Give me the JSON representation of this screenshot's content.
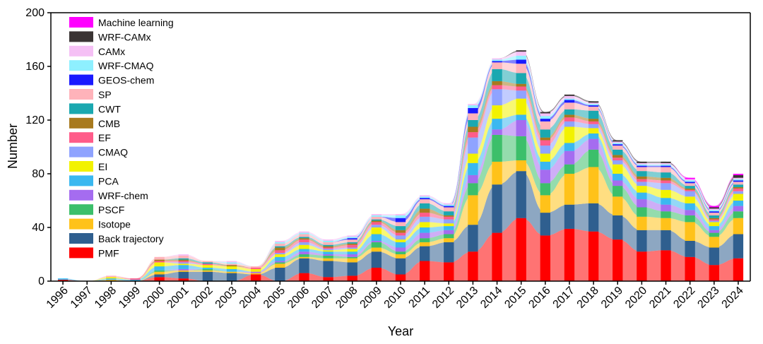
{
  "chart_data": {
    "type": "area",
    "subtype": "stacked-streamgraph-with-bars",
    "title": "",
    "xlabel": "Year",
    "ylabel": "Number",
    "ylim": [
      0,
      200
    ],
    "yticks": [
      "0",
      "40",
      "80",
      "120",
      "160",
      "200"
    ],
    "categories": [
      "1996",
      "1997",
      "1998",
      "1999",
      "2000",
      "2001",
      "2002",
      "2003",
      "2004",
      "2005",
      "2006",
      "2007",
      "2008",
      "2009",
      "2010",
      "2011",
      "2012",
      "2013",
      "2014",
      "2015",
      "2016",
      "2017",
      "2018",
      "2019",
      "2020",
      "2021",
      "2022",
      "2023",
      "2024"
    ],
    "legend_position": "top-left",
    "series": [
      {
        "name": "PMF",
        "color": "#ff0000",
        "values": [
          1,
          0,
          0,
          0,
          3,
          2,
          0,
          0,
          5,
          0,
          6,
          3,
          4,
          10,
          5,
          15,
          14,
          22,
          36,
          47,
          34,
          39,
          37,
          31,
          22,
          23,
          18,
          12,
          17
        ]
      },
      {
        "name": "Back trajectory",
        "color": "#2f5f8f",
        "values": [
          0,
          0,
          0,
          0,
          2,
          5,
          7,
          6,
          0,
          10,
          11,
          12,
          10,
          12,
          12,
          11,
          15,
          20,
          36,
          35,
          17,
          18,
          21,
          18,
          16,
          15,
          12,
          13,
          18
        ]
      },
      {
        "name": "Isotope",
        "color": "#ffc21a",
        "values": [
          0,
          0,
          1,
          0,
          2,
          1,
          1,
          1,
          1,
          3,
          1,
          2,
          3,
          3,
          3,
          3,
          3,
          22,
          17,
          8,
          13,
          23,
          27,
          14,
          10,
          9,
          14,
          8,
          12
        ]
      },
      {
        "name": "PSCF",
        "color": "#3cbf6a",
        "values": [
          0,
          0,
          0,
          0,
          1,
          0,
          1,
          0,
          0,
          1,
          2,
          2,
          1,
          4,
          2,
          3,
          3,
          9,
          20,
          18,
          9,
          7,
          13,
          8,
          7,
          5,
          5,
          3,
          5
        ]
      },
      {
        "name": "WRF-chem",
        "color": "#a56cf0",
        "values": [
          0,
          0,
          0,
          0,
          0,
          1,
          0,
          0,
          1,
          1,
          2,
          1,
          2,
          1,
          3,
          4,
          3,
          6,
          4,
          12,
          10,
          10,
          8,
          4,
          6,
          5,
          4,
          2,
          4
        ]
      },
      {
        "name": "PCA",
        "color": "#3ab8f0",
        "values": [
          1,
          0,
          1,
          1,
          3,
          3,
          1,
          2,
          0,
          3,
          2,
          2,
          2,
          5,
          4,
          4,
          3,
          9,
          8,
          4,
          6,
          6,
          4,
          5,
          5,
          5,
          5,
          3,
          4
        ]
      },
      {
        "name": "EI",
        "color": "#f2f200",
        "values": [
          0,
          0,
          1,
          0,
          3,
          1,
          2,
          2,
          2,
          2,
          3,
          1,
          2,
          5,
          2,
          4,
          2,
          7,
          10,
          12,
          6,
          12,
          4,
          7,
          5,
          6,
          5,
          3,
          5
        ]
      },
      {
        "name": "CMAQ",
        "color": "#8fa3ff",
        "values": [
          0,
          0,
          0,
          0,
          0,
          1,
          0,
          0,
          0,
          1,
          2,
          1,
          1,
          2,
          3,
          4,
          3,
          12,
          12,
          6,
          6,
          4,
          3,
          3,
          3,
          5,
          4,
          1,
          2
        ]
      },
      {
        "name": "EF",
        "color": "#ff5c8a",
        "values": [
          0,
          0,
          0,
          1,
          1,
          1,
          1,
          0,
          1,
          2,
          2,
          1,
          2,
          2,
          2,
          3,
          2,
          4,
          3,
          3,
          4,
          3,
          2,
          2,
          2,
          2,
          1,
          1,
          2
        ]
      },
      {
        "name": "CMB",
        "color": "#a87a1e",
        "values": [
          0,
          0,
          0,
          0,
          1,
          1,
          0,
          1,
          0,
          2,
          1,
          1,
          1,
          1,
          2,
          3,
          1,
          4,
          3,
          2,
          2,
          2,
          2,
          2,
          2,
          2,
          1,
          1,
          1
        ]
      },
      {
        "name": "CWT",
        "color": "#1aa8b0",
        "values": [
          0,
          0,
          0,
          0,
          0,
          1,
          1,
          0,
          0,
          1,
          1,
          1,
          1,
          1,
          3,
          4,
          3,
          5,
          9,
          8,
          6,
          4,
          6,
          4,
          4,
          4,
          2,
          2,
          2
        ]
      },
      {
        "name": "SP",
        "color": "#ffb3ba",
        "values": [
          0,
          0,
          1,
          0,
          2,
          2,
          1,
          1,
          1,
          2,
          2,
          2,
          2,
          2,
          3,
          3,
          3,
          5,
          5,
          7,
          6,
          5,
          3,
          3,
          3,
          4,
          2,
          2,
          2
        ]
      },
      {
        "name": "GEOS-chem",
        "color": "#1a1aff",
        "values": [
          0,
          0,
          0,
          0,
          0,
          0,
          0,
          0,
          0,
          0,
          0,
          0,
          1,
          0,
          3,
          1,
          1,
          4,
          1,
          3,
          2,
          2,
          1,
          1,
          1,
          1,
          1,
          1,
          1
        ]
      },
      {
        "name": "WRF-CMAQ",
        "color": "#8ef0ff",
        "values": [
          0,
          0,
          0,
          0,
          0,
          0,
          0,
          1,
          0,
          1,
          1,
          1,
          1,
          1,
          2,
          1,
          1,
          2,
          1,
          3,
          2,
          1,
          1,
          1,
          1,
          1,
          1,
          1,
          1
        ]
      },
      {
        "name": "CAMx",
        "color": "#f5c0f5",
        "values": [
          0,
          0,
          0,
          0,
          0,
          1,
          0,
          1,
          0,
          1,
          1,
          1,
          1,
          1,
          1,
          1,
          1,
          1,
          1,
          3,
          2,
          2,
          1,
          1,
          1,
          1,
          1,
          1,
          1
        ]
      },
      {
        "name": "WRF-CAMx",
        "color": "#3a3434",
        "values": [
          0,
          0,
          0,
          0,
          0,
          0,
          0,
          0,
          0,
          0,
          0,
          0,
          0,
          0,
          0,
          0,
          0,
          0,
          0,
          1,
          1,
          1,
          1,
          1,
          1,
          1,
          0,
          1,
          2
        ]
      },
      {
        "name": "Machine learning",
        "color": "#ff00ff",
        "values": [
          0,
          0,
          0,
          0,
          0,
          0,
          0,
          0,
          0,
          0,
          0,
          0,
          0,
          0,
          0,
          0,
          0,
          0,
          0,
          0,
          0,
          0,
          0,
          0,
          0,
          0,
          1,
          1,
          1
        ]
      }
    ]
  }
}
